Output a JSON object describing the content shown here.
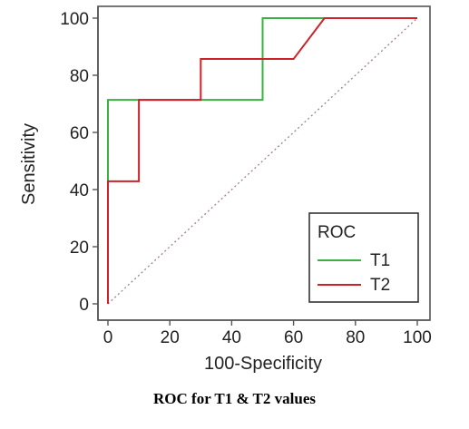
{
  "caption": "ROC for T1 & T2 values",
  "colors": {
    "t1": "#3cb043",
    "t2": "#cc2229",
    "diagonal": "#a08080",
    "axis": "#555555"
  },
  "chart_data": {
    "type": "line",
    "xlabel": "100-Specificity",
    "ylabel": "Sensitivity",
    "xlim": [
      0,
      100
    ],
    "ylim": [
      0,
      100
    ],
    "xticks": [
      "0",
      "20",
      "40",
      "60",
      "80",
      "100"
    ],
    "yticks": [
      "0",
      "20",
      "40",
      "60",
      "80",
      "100"
    ],
    "grid": false,
    "legend": {
      "title": "ROC",
      "placement": "bottom-right"
    },
    "reference_line": {
      "x": [
        0,
        100
      ],
      "y": [
        0,
        100
      ],
      "style": "dotted"
    },
    "series": [
      {
        "name": "T1",
        "x": [
          0,
          0,
          10,
          50,
          50,
          100
        ],
        "y": [
          0,
          71.4,
          71.4,
          71.4,
          100,
          100
        ]
      },
      {
        "name": "T2",
        "x": [
          0,
          0,
          10,
          10,
          30,
          30,
          60,
          70,
          100
        ],
        "y": [
          0,
          42.9,
          42.9,
          71.4,
          71.4,
          85.7,
          85.7,
          100,
          100
        ]
      }
    ]
  }
}
